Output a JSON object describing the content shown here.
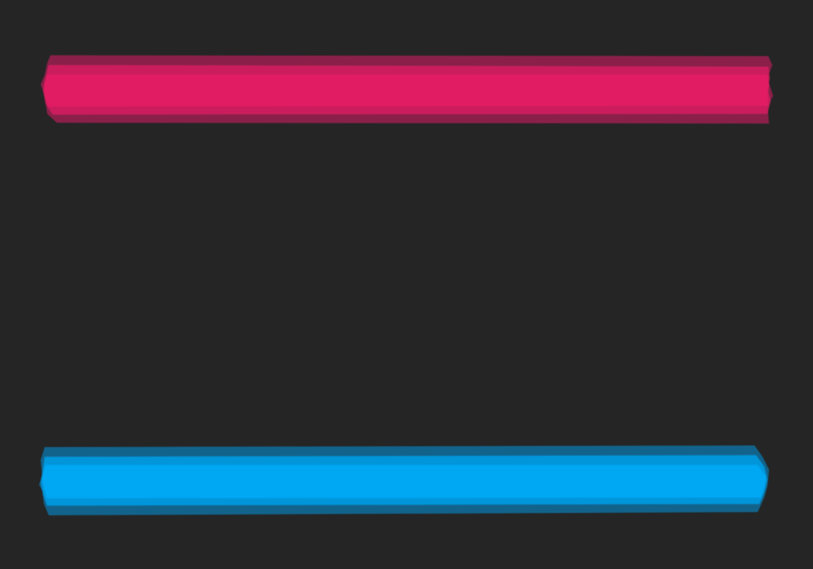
{
  "background_color": "#252525",
  "strokes": [
    {
      "name": "pink",
      "color": "#e21f63",
      "edge_color": "#9c2150"
    },
    {
      "name": "blue",
      "color": "#03a8f4",
      "edge_color": "#0a6e9e"
    }
  ]
}
